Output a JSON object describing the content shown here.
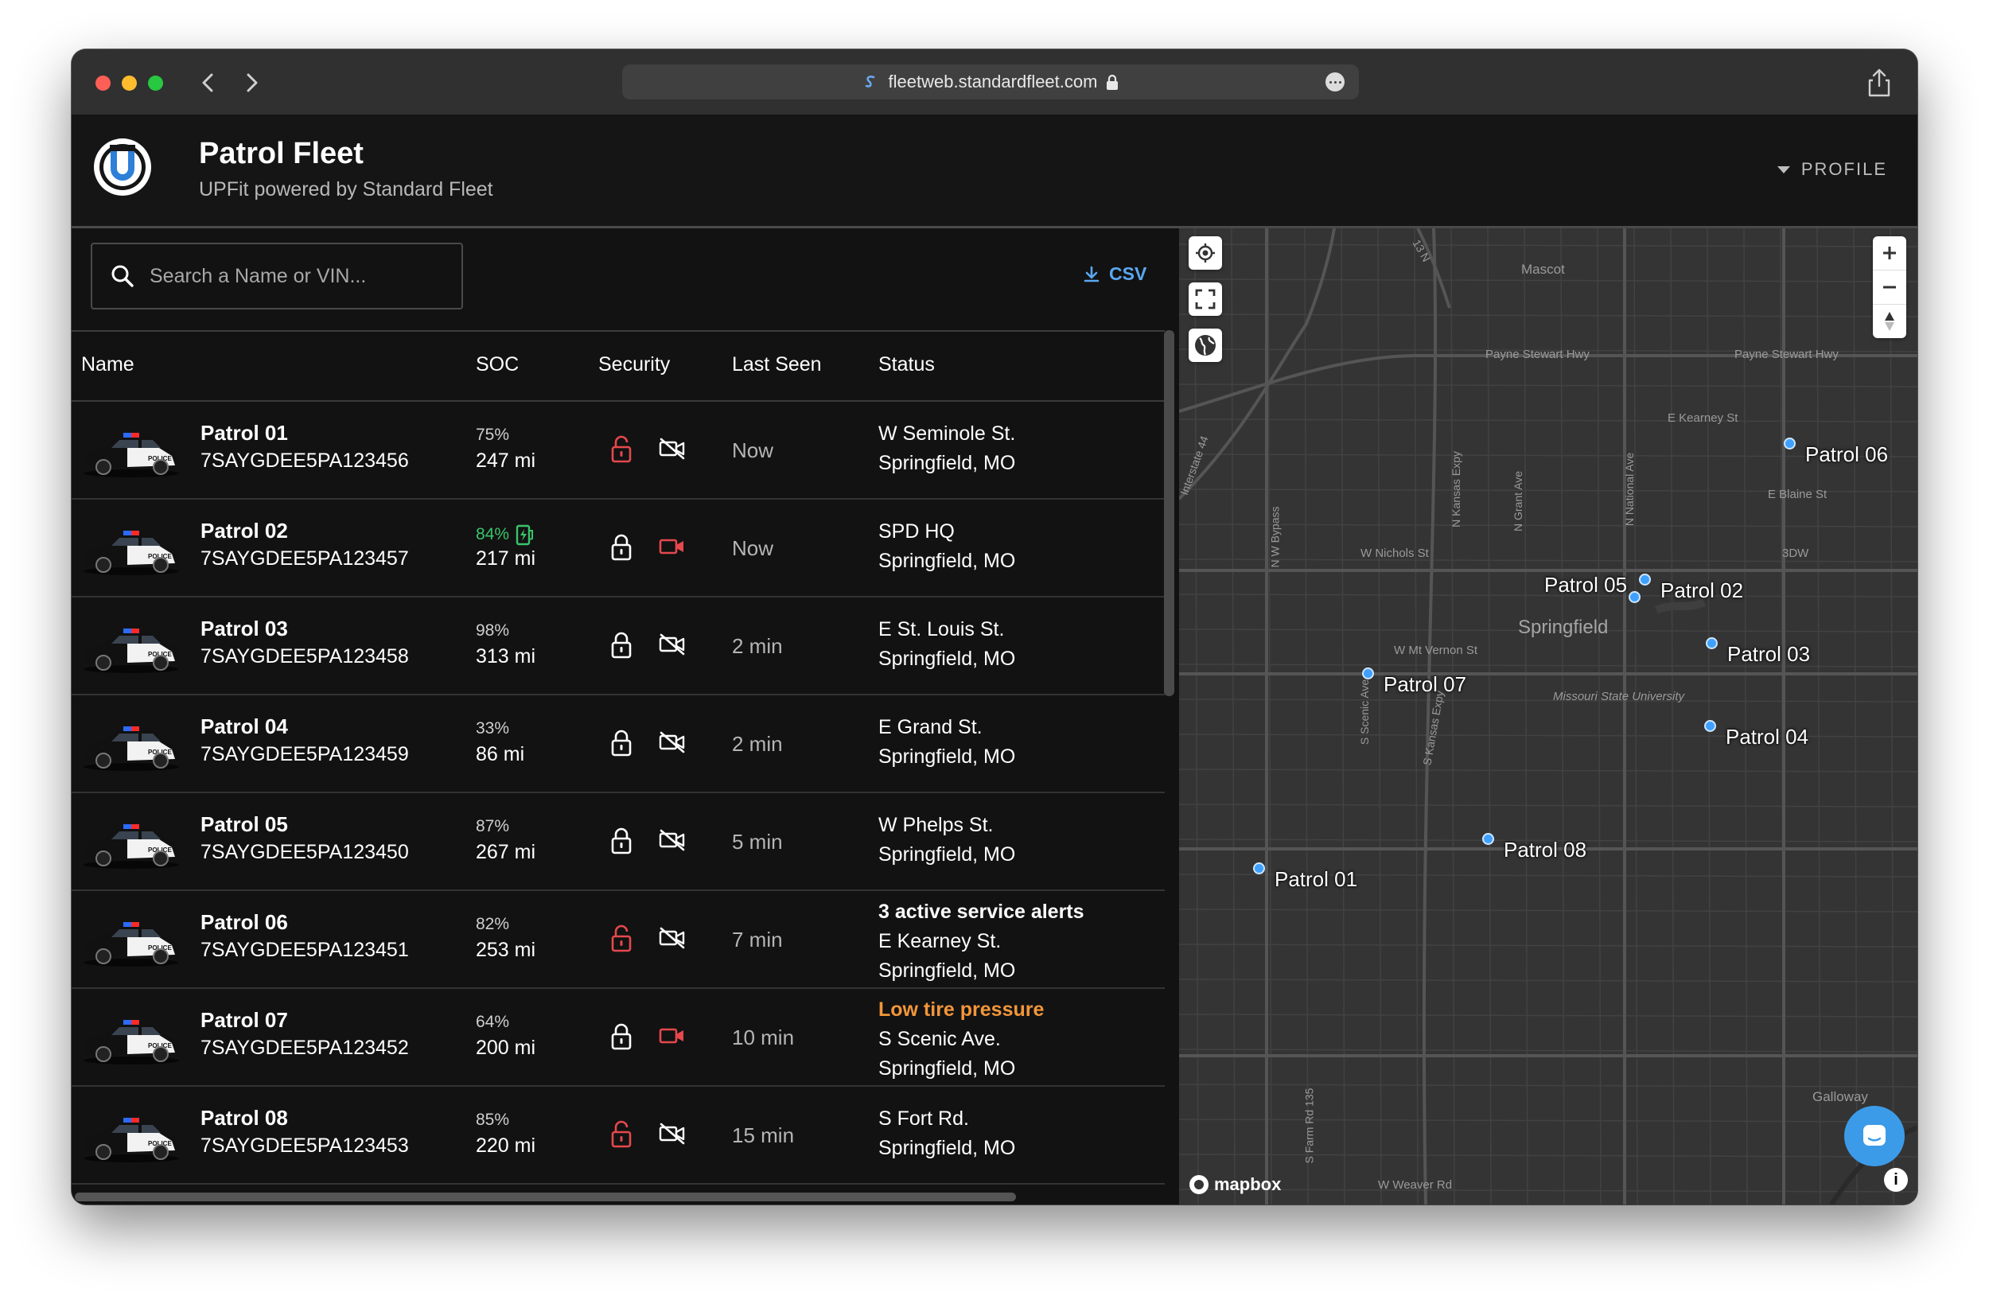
{
  "browser": {
    "url": "fleetweb.standardfleet.com"
  },
  "app": {
    "title": "Patrol Fleet",
    "subtitle": "UPFit powered by Standard Fleet",
    "profile_label": "PROFILE"
  },
  "search": {
    "placeholder": "Search a Name or VIN...",
    "value": ""
  },
  "toolbar": {
    "csv_label": "CSV"
  },
  "table": {
    "headers": {
      "name": "Name",
      "soc": "SOC",
      "security": "Security",
      "last_seen": "Last Seen",
      "status": "Status"
    },
    "rows": [
      {
        "name": "Patrol 01",
        "vin": "7SAYGDEE5PA123456",
        "soc": "75%",
        "charging": false,
        "range": "247 mi",
        "lock": "unlocked",
        "camera": "off",
        "last_seen": "Now",
        "status_alert": "",
        "status_warning": "",
        "status_line1": "W Seminole St.",
        "status_line2": "Springfield, MO"
      },
      {
        "name": "Patrol 02",
        "vin": "7SAYGDEE5PA123457",
        "soc": "84%",
        "charging": true,
        "range": "217 mi",
        "lock": "locked",
        "camera": "recording",
        "last_seen": "Now",
        "status_alert": "",
        "status_warning": "",
        "status_line1": "SPD HQ",
        "status_line2": "Springfield, MO"
      },
      {
        "name": "Patrol 03",
        "vin": "7SAYGDEE5PA123458",
        "soc": "98%",
        "charging": false,
        "range": "313 mi",
        "lock": "locked",
        "camera": "off",
        "last_seen": "2 min",
        "status_alert": "",
        "status_warning": "",
        "status_line1": "E St. Louis St.",
        "status_line2": "Springfield, MO"
      },
      {
        "name": "Patrol 04",
        "vin": "7SAYGDEE5PA123459",
        "soc": "33%",
        "charging": false,
        "range": "86 mi",
        "lock": "locked",
        "camera": "off",
        "last_seen": "2 min",
        "status_alert": "",
        "status_warning": "",
        "status_line1": "E Grand St.",
        "status_line2": "Springfield, MO"
      },
      {
        "name": "Patrol 05",
        "vin": "7SAYGDEE5PA123450",
        "soc": "87%",
        "charging": false,
        "range": "267 mi",
        "lock": "locked",
        "camera": "off",
        "last_seen": "5 min",
        "status_alert": "",
        "status_warning": "",
        "status_line1": "W Phelps St.",
        "status_line2": "Springfield, MO"
      },
      {
        "name": "Patrol 06",
        "vin": "7SAYGDEE5PA123451",
        "soc": "82%",
        "charging": false,
        "range": "253 mi",
        "lock": "unlocked",
        "camera": "off",
        "last_seen": "7 min",
        "status_alert": "3 active service alerts",
        "status_warning": "",
        "status_line1": "E Kearney St.",
        "status_line2": "Springfield, MO"
      },
      {
        "name": "Patrol 07",
        "vin": "7SAYGDEE5PA123452",
        "soc": "64%",
        "charging": false,
        "range": "200 mi",
        "lock": "locked",
        "camera": "recording",
        "last_seen": "10 min",
        "status_alert": "",
        "status_warning": "Low tire pressure",
        "status_line1": "S Scenic Ave.",
        "status_line2": "Springfield, MO"
      },
      {
        "name": "Patrol 08",
        "vin": "7SAYGDEE5PA123453",
        "soc": "85%",
        "charging": false,
        "range": "220 mi",
        "lock": "unlocked",
        "camera": "off",
        "last_seen": "15 min",
        "status_alert": "",
        "status_warning": "",
        "status_line1": "S Fort Rd.",
        "status_line2": "Springfield, MO"
      }
    ]
  },
  "map": {
    "vehicles": [
      {
        "label": "Patrol 01"
      },
      {
        "label": "Patrol 02"
      },
      {
        "label": "Patrol 03"
      },
      {
        "label": "Patrol 04"
      },
      {
        "label": "Patrol 05"
      },
      {
        "label": "Patrol 06"
      },
      {
        "label": "Patrol 07"
      },
      {
        "label": "Patrol 08"
      }
    ],
    "place_labels": {
      "mascot": "Mascot",
      "springfield": "Springfield",
      "payne1": "Payne Stewart Hwy",
      "payne2": "Payne Stewart Hwy",
      "kearney": "E Kearney St",
      "blaine": "E Blaine St",
      "nichols": "W Nichols St",
      "mtvernon": "W Mt Vernon St",
      "msu": "Missouri State University",
      "galloway": "Galloway",
      "weaver": "W Weaver Rd",
      "tdw": "3DW",
      "interstate": "Interstate 44",
      "nwbypass": "N W Bypass",
      "nkansas": "N Kansas Expy",
      "ngrant": "N Grant Ave",
      "nnational": "N National Ave",
      "sscenic": "S Scenic Ave",
      "skansas": "S Kansas Expy",
      "sfarm": "S Farm Rd 135",
      "n13": "13 N"
    },
    "attribution": "mapbox",
    "colors": {
      "pin": "#3fa0ff",
      "background": "#343434",
      "road": "#4a4a4a"
    }
  },
  "colors": {
    "accent": "#5aa8f0",
    "danger": "#e5484d",
    "warning": "#f2963a",
    "charging": "#39c46a"
  }
}
